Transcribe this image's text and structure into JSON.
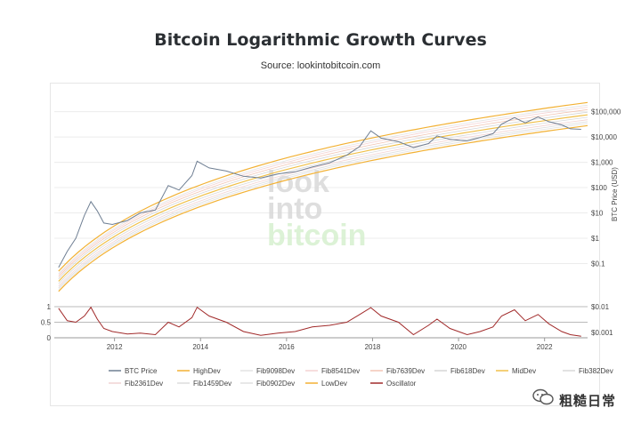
{
  "title": "Bitcoin Logarithmic Growth Curves",
  "subtitle": "Source: lookintobitcoin.com",
  "watermark_lines": [
    "look",
    "into",
    "bitcoin"
  ],
  "corner_badge": "粗糙日常",
  "chart_data": {
    "type": "line",
    "y_scale": "log",
    "ylabel": "BTC Price (USD)",
    "xlim": [
      2010.6,
      2023.0
    ],
    "ylim": [
      0.01,
      300000
    ],
    "x_ticks": [
      2012,
      2014,
      2016,
      2018,
      2020,
      2022
    ],
    "x_tick_labels": [
      "2012",
      "2014",
      "2016",
      "2018",
      "2020",
      "2022"
    ],
    "y_ticks": [
      0.1,
      1,
      10,
      100,
      1000,
      10000,
      100000
    ],
    "y_tick_labels": [
      "$0.1",
      "$1",
      "$10",
      "$100",
      "$1,000",
      "$10,000",
      "$100,000"
    ],
    "oscillator_right_ticks": [
      0.01,
      0.001
    ],
    "oscillator_right_labels": [
      "$0.01",
      "$0.001"
    ],
    "oscillator_left_ticks": [
      0,
      0.5,
      1
    ],
    "oscillator_left_labels": [
      "0",
      "0.5",
      "1"
    ],
    "oscillator_ylim": [
      0,
      1
    ],
    "band_curves": [
      {
        "name": "HighDev",
        "color": "#f2b134",
        "endpoints": [
          [
            2010.7,
            0.05
          ],
          [
            2023.0,
            230000
          ]
        ]
      },
      {
        "name": "Fib9098Dev",
        "color": "#e3e3e3",
        "endpoints": [
          [
            2010.7,
            0.04
          ],
          [
            2023.0,
            180000
          ]
        ]
      },
      {
        "name": "Fib8541Dev",
        "color": "#f4d2d2",
        "endpoints": [
          [
            2010.7,
            0.035
          ],
          [
            2023.0,
            150000
          ]
        ]
      },
      {
        "name": "Fib7639Dev",
        "color": "#f2c6b6",
        "endpoints": [
          [
            2010.7,
            0.03
          ],
          [
            2023.0,
            120000
          ]
        ]
      },
      {
        "name": "Fib618Dev",
        "color": "#d6d6d6",
        "endpoints": [
          [
            2010.7,
            0.025
          ],
          [
            2023.0,
            95000
          ]
        ]
      },
      {
        "name": "MidDev",
        "color": "#f0c04a",
        "endpoints": [
          [
            2010.7,
            0.02
          ],
          [
            2023.0,
            75000
          ]
        ]
      },
      {
        "name": "Fib382Dev",
        "color": "#d9d9d9",
        "endpoints": [
          [
            2010.7,
            0.016
          ],
          [
            2023.0,
            60000
          ]
        ]
      },
      {
        "name": "Fib2361Dev",
        "color": "#f1d3d3",
        "endpoints": [
          [
            2010.7,
            0.013
          ],
          [
            2023.0,
            48000
          ]
        ]
      },
      {
        "name": "Fib1459Dev",
        "color": "#dcdcdc",
        "endpoints": [
          [
            2010.7,
            0.011
          ],
          [
            2023.0,
            40000
          ]
        ]
      },
      {
        "name": "Fib0902Dev",
        "color": "#e0e0e0",
        "endpoints": [
          [
            2010.7,
            0.0095
          ],
          [
            2023.0,
            34000
          ]
        ]
      },
      {
        "name": "LowDev",
        "color": "#f2b134",
        "endpoints": [
          [
            2010.7,
            0.008
          ],
          [
            2023.0,
            28000
          ]
        ]
      }
    ],
    "series": [
      {
        "name": "BTC Price",
        "color": "#6f7f93",
        "x": [
          2010.7,
          2010.9,
          2011.1,
          2011.3,
          2011.45,
          2011.6,
          2011.75,
          2011.95,
          2012.3,
          2012.6,
          2012.95,
          2013.25,
          2013.5,
          2013.8,
          2013.92,
          2014.2,
          2014.6,
          2015.0,
          2015.4,
          2015.8,
          2016.2,
          2016.6,
          2017.0,
          2017.4,
          2017.7,
          2017.96,
          2018.2,
          2018.6,
          2018.95,
          2019.3,
          2019.5,
          2019.8,
          2020.2,
          2020.5,
          2020.8,
          2021.0,
          2021.3,
          2021.55,
          2021.85,
          2022.1,
          2022.4,
          2022.6,
          2022.85
        ],
        "y": [
          0.07,
          0.3,
          1,
          8,
          28,
          12,
          4,
          3.5,
          5,
          10,
          13,
          120,
          80,
          300,
          1100,
          600,
          450,
          280,
          240,
          350,
          420,
          650,
          950,
          1900,
          4200,
          17500,
          9000,
          6500,
          3800,
          5500,
          11000,
          8000,
          7000,
          9500,
          13500,
          32000,
          58000,
          36000,
          62000,
          40000,
          30000,
          21000,
          20000
        ]
      },
      {
        "name": "Oscillator",
        "color": "#a12a2a",
        "x": [
          2010.7,
          2010.9,
          2011.1,
          2011.3,
          2011.45,
          2011.6,
          2011.75,
          2011.95,
          2012.3,
          2012.6,
          2012.95,
          2013.25,
          2013.5,
          2013.8,
          2013.92,
          2014.2,
          2014.6,
          2015.0,
          2015.4,
          2015.8,
          2016.2,
          2016.6,
          2017.0,
          2017.4,
          2017.7,
          2017.96,
          2018.2,
          2018.6,
          2018.95,
          2019.3,
          2019.5,
          2019.8,
          2020.2,
          2020.5,
          2020.8,
          2021.0,
          2021.3,
          2021.55,
          2021.85,
          2022.1,
          2022.4,
          2022.6,
          2022.85
        ],
        "y": [
          0.95,
          0.55,
          0.5,
          0.7,
          0.98,
          0.6,
          0.3,
          0.2,
          0.12,
          0.15,
          0.1,
          0.5,
          0.35,
          0.65,
          0.98,
          0.7,
          0.5,
          0.2,
          0.08,
          0.15,
          0.2,
          0.35,
          0.4,
          0.5,
          0.75,
          0.97,
          0.7,
          0.5,
          0.1,
          0.4,
          0.6,
          0.3,
          0.1,
          0.2,
          0.35,
          0.7,
          0.9,
          0.55,
          0.75,
          0.45,
          0.2,
          0.1,
          0.05
        ]
      }
    ],
    "legend": [
      {
        "name": "BTC Price",
        "color": "#6f7f93"
      },
      {
        "name": "HighDev",
        "color": "#f2b134"
      },
      {
        "name": "Fib9098Dev",
        "color": "#e3e3e3"
      },
      {
        "name": "Fib8541Dev",
        "color": "#f4d2d2"
      },
      {
        "name": "Fib7639Dev",
        "color": "#f2c6b6"
      },
      {
        "name": "Fib618Dev",
        "color": "#d6d6d6"
      },
      {
        "name": "MidDev",
        "color": "#f0c04a"
      },
      {
        "name": "Fib382Dev",
        "color": "#d9d9d9"
      },
      {
        "name": "Fib2361Dev",
        "color": "#f1d3d3"
      },
      {
        "name": "Fib1459Dev",
        "color": "#dcdcdc"
      },
      {
        "name": "Fib0902Dev",
        "color": "#e0e0e0"
      },
      {
        "name": "LowDev",
        "color": "#f2b134"
      },
      {
        "name": "Oscillator",
        "color": "#a12a2a"
      }
    ],
    "legend_placement": "bottom",
    "grid": true
  }
}
